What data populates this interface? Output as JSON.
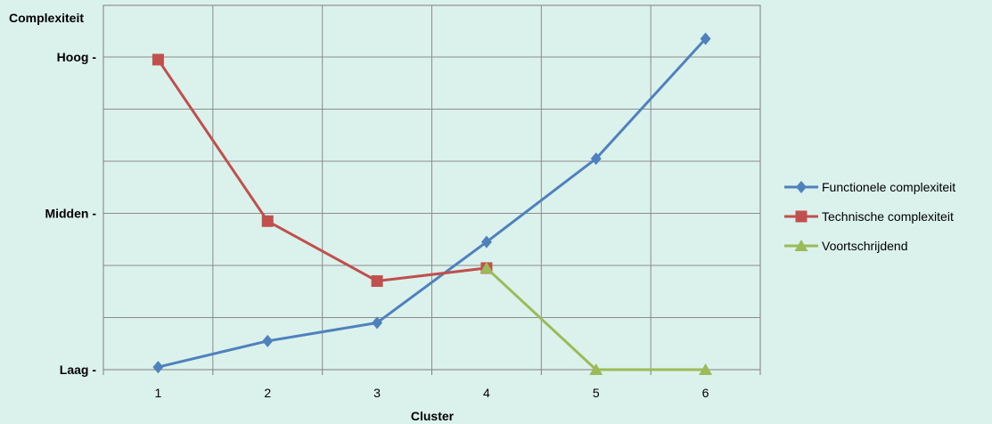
{
  "chart_data": {
    "type": "line",
    "xlabel": "Cluster",
    "ylabel": "Complexiteit",
    "categories": [
      "1",
      "2",
      "3",
      "4",
      "5",
      "6"
    ],
    "ylim": [
      0,
      6
    ],
    "y_tick_labels": [
      {
        "value": 0,
        "label": "Laag -"
      },
      {
        "value": 3,
        "label": "Midden -"
      },
      {
        "value": 6,
        "label": "Hoog -"
      }
    ],
    "grid": true,
    "legend_position": "right",
    "series": [
      {
        "name": "Functionele complexiteit",
        "color": "#4f81bd",
        "marker": "diamond",
        "points": [
          [
            1,
            0.05
          ],
          [
            2,
            0.55
          ],
          [
            3,
            0.9
          ],
          [
            4,
            2.45
          ],
          [
            5,
            4.05
          ],
          [
            6,
            6.35
          ]
        ]
      },
      {
        "name": "Technische complexiteit",
        "color": "#c0504d",
        "marker": "square",
        "points": [
          [
            1,
            5.95
          ],
          [
            2,
            2.85
          ],
          [
            3,
            1.7
          ],
          [
            4,
            1.95
          ]
        ]
      },
      {
        "name": "Voortschrijdend",
        "color": "#9bbb59",
        "marker": "triangle",
        "points": [
          [
            4,
            1.95
          ],
          [
            5,
            0.0
          ],
          [
            6,
            0.0
          ]
        ]
      }
    ]
  }
}
